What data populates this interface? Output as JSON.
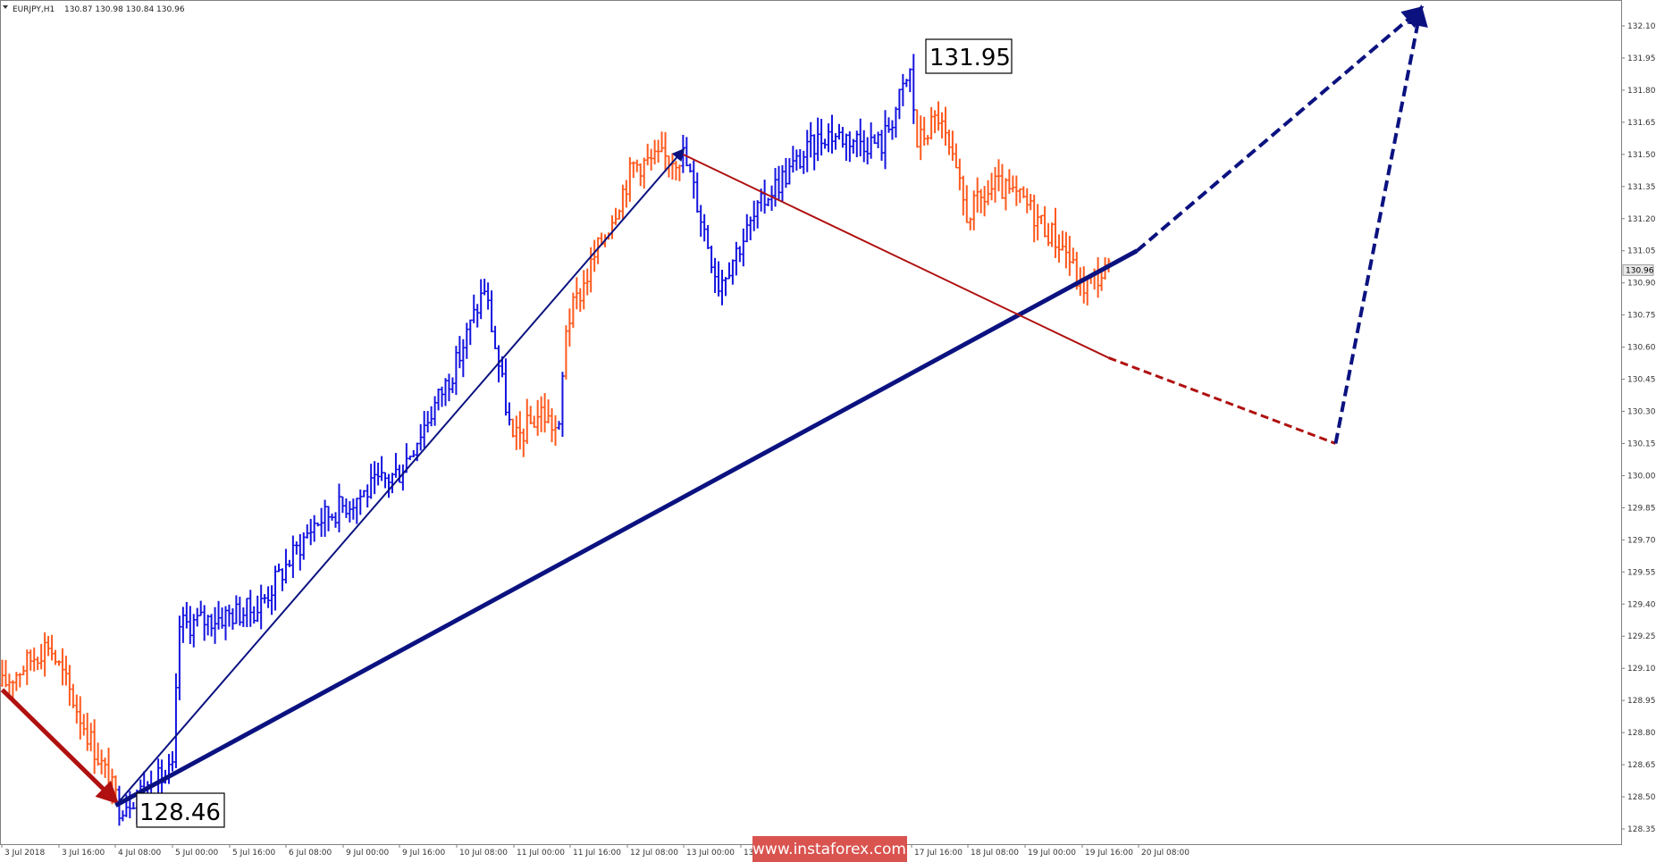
{
  "header": {
    "symbol": "EURJPY,H1",
    "ohlc": "130.87 130.98 130.84 130.96",
    "menu_icon": "triangle-down-icon"
  },
  "watermark": {
    "text": "www.instaforex.com",
    "bg_color": "#d9534f"
  },
  "callouts": {
    "high": "131.95",
    "low": "128.46"
  },
  "current_price": {
    "label": "130.96",
    "value": 130.96
  },
  "colors": {
    "bull": "#1414e0",
    "bear": "#ff5a1e",
    "trend_navy": "#0b1280",
    "trend_red": "#b01010",
    "axis": "#808080"
  },
  "chart_data": {
    "type": "bar",
    "instrument": "EURJPY",
    "timeframe": "H1",
    "y_ticks": [
      "132.10",
      "131.95",
      "131.80",
      "131.65",
      "131.50",
      "131.35",
      "131.20",
      "131.05",
      "130.90",
      "130.75",
      "130.60",
      "130.45",
      "130.30",
      "130.15",
      "130.00",
      "129.85",
      "129.70",
      "129.55",
      "129.40",
      "129.25",
      "129.10",
      "128.95",
      "128.80",
      "128.65",
      "128.50",
      "128.35"
    ],
    "x_ticks": [
      "3 Jul 2018",
      "3 Jul 16:00",
      "4 Jul 08:00",
      "5 Jul 00:00",
      "5 Jul 16:00",
      "6 Jul 08:00",
      "9 Jul 00:00",
      "9 Jul 16:00",
      "10 Jul 08:00",
      "11 Jul 00:00",
      "11 Jul 16:00",
      "12 Jul 08:00",
      "13 Jul 00:00",
      "13",
      "17 Jul 16:00",
      "18 Jul 08:00",
      "19 Jul 00:00",
      "19 Jul 16:00",
      "20 Jul 08:00"
    ],
    "ylim": [
      128.29,
      132.2
    ],
    "grid": false,
    "swing_points": [
      {
        "label": "128.46",
        "price": 128.46,
        "kind": "low"
      },
      {
        "label": "131.95",
        "price": 131.95,
        "kind": "high"
      }
    ],
    "waypoints": [
      {
        "time": "3 Jul 2018 00:00",
        "price": 129.02
      },
      {
        "time": "3 Jul 13:00",
        "price": 129.22
      },
      {
        "time": "4 Jul 09:00",
        "price": 128.46
      },
      {
        "time": "5 Jul 00:00",
        "price": 128.62
      },
      {
        "time": "5 Jul 02:00",
        "price": 129.3
      },
      {
        "time": "6 Jul 00:00",
        "price": 129.38
      },
      {
        "time": "6 Jul 16:00",
        "price": 129.78
      },
      {
        "time": "9 Jul 16:00",
        "price": 130.02
      },
      {
        "time": "10 Jul 08:00",
        "price": 130.52
      },
      {
        "time": "10 Jul 16:00",
        "price": 130.88
      },
      {
        "time": "11 Jul 00:00",
        "price": 130.15
      },
      {
        "time": "11 Jul 08:00",
        "price": 130.3
      },
      {
        "time": "11 Jul 13:00",
        "price": 130.2
      },
      {
        "time": "11 Jul 15:00",
        "price": 130.7
      },
      {
        "time": "12 Jul 10:00",
        "price": 131.45
      },
      {
        "time": "13 Jul 00:00",
        "price": 131.5
      },
      {
        "time": "13 Jul 02:00",
        "price": 131.4
      },
      {
        "time": "13 Jul 10:00",
        "price": 130.9
      },
      {
        "time": "16 Jul 00:00",
        "price": 131.32
      },
      {
        "time": "16 Jul 16:00",
        "price": 131.6
      },
      {
        "time": "17 Jul 08:00",
        "price": 131.55
      },
      {
        "time": "17 Jul 16:00",
        "price": 131.88
      },
      {
        "time": "17 Jul 18:00",
        "price": 131.55
      },
      {
        "time": "18 Jul 00:00",
        "price": 131.68
      },
      {
        "time": "18 Jul 08:00",
        "price": 131.22
      },
      {
        "time": "18 Jul 16:00",
        "price": 131.35
      },
      {
        "time": "19 Jul 00:00",
        "price": 131.28
      },
      {
        "time": "19 Jul 12:00",
        "price": 131.05
      },
      {
        "time": "19 Jul 16:00",
        "price": 130.88
      },
      {
        "time": "20 Jul 00:00",
        "price": 130.96
      }
    ],
    "trend_lines": [
      {
        "name": "red-decline-arrow",
        "style": "solid-arrow",
        "color": "#b01010",
        "from": {
          "time": "3 Jul 2018 00:00",
          "price": 129.0
        },
        "to": {
          "time": "4 Jul 08:00",
          "price": 128.48
        }
      },
      {
        "name": "navy-wave-arrow",
        "style": "solid-arrow",
        "color": "#0b1280",
        "from": {
          "time": "4 Jul 08:00",
          "price": 128.46
        },
        "to": {
          "time": "13 Jul 00:00",
          "price": 131.52
        }
      },
      {
        "name": "navy-support-line",
        "style": "solid-thick",
        "color": "#0b1280",
        "from": {
          "time": "4 Jul 08:00",
          "price": 128.46
        },
        "to": {
          "time": "20 Jul 08:00",
          "price": 131.05
        }
      },
      {
        "name": "navy-forecast-up",
        "style": "dashed-arrow",
        "color": "#0b1280",
        "from": {
          "time": "20 Jul 08:00",
          "price": 131.05
        },
        "to": {
          "time": "25 Jul 16:00",
          "price": 132.18
        }
      },
      {
        "name": "red-resistance-line",
        "style": "solid",
        "color": "#b01010",
        "from": {
          "time": "13 Jul 00:00",
          "price": 131.5
        },
        "to": {
          "time": "20 Jul 00:00",
          "price": 130.55
        }
      },
      {
        "name": "red-forecast-down",
        "style": "dashed",
        "color": "#b01010",
        "from": {
          "time": "20 Jul 00:00",
          "price": 130.55
        },
        "to": {
          "time": "24 Jul 16:00",
          "price": 130.15
        }
      },
      {
        "name": "navy-forecast-rebound",
        "style": "dashed-arrow",
        "color": "#0b1280",
        "from": {
          "time": "24 Jul 16:00",
          "price": 130.15
        },
        "to": {
          "time": "25 Jul 16:00",
          "price": 132.18
        }
      }
    ]
  }
}
